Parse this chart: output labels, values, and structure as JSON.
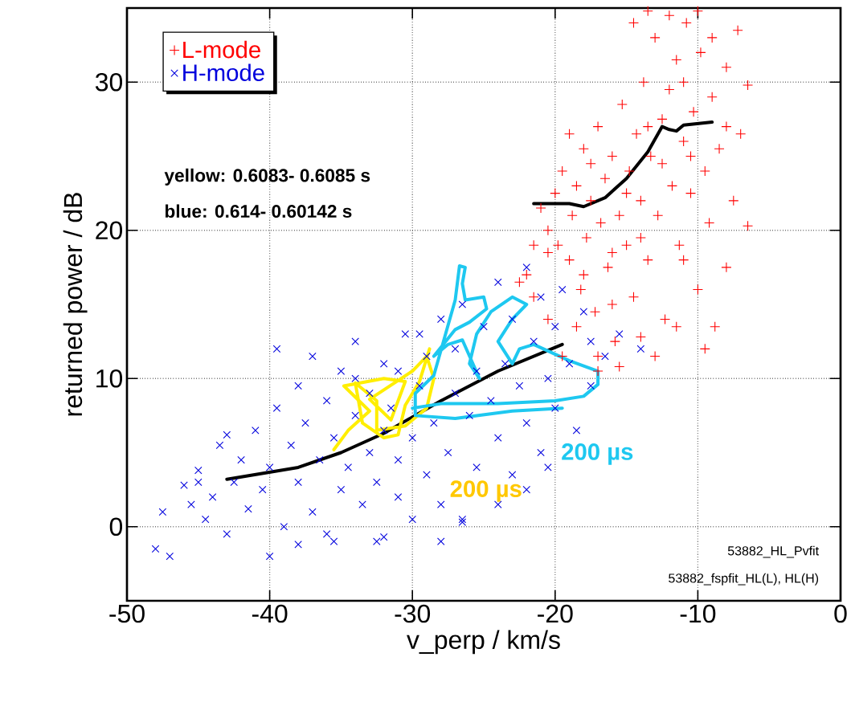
{
  "chart_data": {
    "type": "scatter",
    "xlabel": "v_perp / km/s",
    "ylabel": "returned power / dB",
    "xlim": [
      -50,
      0
    ],
    "xticks": [
      -50,
      -40,
      -30,
      -20,
      -10,
      0
    ],
    "ylim": [
      -5,
      35
    ],
    "yticks": [
      0,
      10,
      20,
      30
    ],
    "grid": true,
    "legend": "top left",
    "annotations": [
      "yellow: 0.6083- 0.6085 s",
      "blue: 0.614- 0.60142 s",
      "200 µs",
      "200 µs",
      "53882_HL_Pvfit",
      "53882_fspfit_HL(L), HL(H)"
    ],
    "series": [
      {
        "name": "L-mode",
        "marker": "plus",
        "color": "#ff0000",
        "x": [
          -21,
          -20.5,
          -20,
          -19.8,
          -19.5,
          -19,
          -18.8,
          -18.5,
          -18.2,
          -18,
          -17.8,
          -17.5,
          -17.2,
          -17,
          -16.8,
          -16.5,
          -16.3,
          -16,
          -15.8,
          -15.5,
          -15.3,
          -15,
          -14.8,
          -14.5,
          -14.3,
          -14,
          -13.8,
          -13.5,
          -13.3,
          -13,
          -12.8,
          -12.5,
          -12.3,
          -12,
          -11.8,
          -11.5,
          -11.3,
          -11,
          -10.8,
          -10.5,
          -10.3,
          -10,
          -9.8,
          -9.5,
          -9.2,
          -9,
          -8.8,
          -8.5,
          -8,
          -7.5,
          -7.2,
          -7,
          -6.5,
          -6.5,
          -8,
          -9.5,
          -11.5,
          -13,
          -14,
          -15.5,
          -17,
          -18.5,
          -19.5,
          -20.5,
          -21.5,
          -22,
          -22.5,
          -17,
          -16,
          -14.5,
          -13.5,
          -12,
          -10,
          -9,
          -11,
          -12.5,
          -13.5,
          -15,
          -17.5,
          -19,
          -11,
          -8,
          -10.5,
          -14,
          -16,
          -18,
          -20.5,
          -21.5
        ],
        "values": [
          21.5,
          20,
          22.5,
          19,
          24,
          18,
          21,
          23,
          16,
          25.5,
          19.5,
          22,
          14.5,
          27,
          20.5,
          23.5,
          17.5,
          25,
          12.5,
          21,
          28.5,
          19,
          24,
          15.5,
          26.5,
          22,
          30,
          18,
          25,
          33,
          21,
          27.5,
          14,
          29.5,
          23,
          31.5,
          19,
          26,
          34,
          22.5,
          28,
          16,
          32,
          24,
          20.5,
          29,
          13.5,
          25.5,
          31,
          22,
          33.5,
          26.5,
          29.8,
          20.3,
          17.5,
          12,
          13.5,
          11.5,
          12.8,
          10.8,
          11.5,
          13.5,
          11.5,
          14,
          15.5,
          17,
          16.5,
          10.5,
          15,
          34,
          34.8,
          34.5,
          34.8,
          33,
          30,
          24.5,
          27,
          22.5,
          24.5,
          26.5,
          18,
          27,
          25,
          19.5,
          18.5,
          17,
          18.5,
          19
        ]
      },
      {
        "name": "H-mode",
        "marker": "cross",
        "color": "#0000dd",
        "x": [
          -48,
          -47,
          -47.5,
          -46,
          -45.5,
          -45,
          -44.5,
          -44,
          -43.5,
          -43,
          -42.5,
          -42,
          -41.5,
          -41,
          -40.5,
          -40,
          -40,
          -39.5,
          -39.5,
          -39,
          -38.5,
          -38,
          -38,
          -37.5,
          -37,
          -37,
          -36.5,
          -36,
          -36,
          -35.5,
          -35,
          -35,
          -34.5,
          -34,
          -34,
          -33.5,
          -33,
          -33,
          -32.5,
          -32.5,
          -32,
          -32,
          -31.5,
          -31,
          -31,
          -30.5,
          -30,
          -30,
          -29.5,
          -29,
          -29,
          -28.5,
          -28,
          -28,
          -27.5,
          -27,
          -27,
          -26.5,
          -26.5,
          -26,
          -25.5,
          -25.5,
          -25,
          -24.5,
          -24,
          -24,
          -23.5,
          -23,
          -23,
          -22.5,
          -22,
          -22,
          -21.5,
          -21,
          -21,
          -20.5,
          -20,
          -20,
          -19.5,
          -19,
          -18.5,
          -18,
          -17.5,
          -17.5,
          -16.5,
          -15.5,
          -14,
          -43,
          -45,
          -38,
          -35.5,
          -32,
          -28,
          -26.5,
          -24,
          -22,
          -20.5,
          -34,
          -31,
          -29.5
        ],
        "values": [
          -1.5,
          -2,
          1,
          2.8,
          1.5,
          3.8,
          0.5,
          2,
          5.5,
          -0.5,
          3,
          4.5,
          1.2,
          6.5,
          2.5,
          -2,
          4,
          8,
          12,
          0,
          5.5,
          3,
          9.5,
          7,
          1,
          11.5,
          4.5,
          8.5,
          -0.5,
          6,
          2.5,
          10.5,
          4,
          7.5,
          12.5,
          1.5,
          5,
          9,
          -1,
          3,
          6.5,
          11,
          8,
          2,
          4.5,
          13,
          6,
          0.5,
          9.5,
          3.5,
          11.5,
          7,
          1.5,
          14,
          5,
          9,
          12,
          0.5,
          15,
          7.5,
          4,
          10.5,
          13.5,
          8.5,
          6,
          16.5,
          11,
          3.5,
          14,
          9.5,
          7,
          17.5,
          12.5,
          5,
          15.5,
          10,
          8,
          13.5,
          16,
          11,
          6.5,
          14.5,
          9.5,
          12.5,
          11.5,
          13,
          12,
          6.2,
          3,
          -1.2,
          -1,
          -0.7,
          -1,
          0.3,
          1.5,
          2.5,
          4,
          10,
          10.5,
          13
        ]
      },
      {
        "type": "line",
        "color": "#000000",
        "x": [
          -43,
          -38,
          -35,
          -32,
          -28,
          -24,
          -19.5
        ],
        "values": [
          3.2,
          4,
          5,
          6.3,
          8.5,
          10.5,
          12.3
        ]
      },
      {
        "type": "line",
        "color": "#000000",
        "x": [
          -21.5,
          -19,
          -18,
          -16.5,
          -15,
          -13.5,
          -12.5,
          -12,
          -11.5,
          -11,
          -9
        ],
        "values": [
          21.8,
          21.8,
          21.6,
          22.2,
          23.5,
          25.3,
          27,
          26.8,
          26.7,
          27.1,
          27.3
        ]
      },
      {
        "type": "line",
        "color": "#ffee00",
        "x": [
          -35.5,
          -34.5,
          -33,
          -34.8,
          -32,
          -30.5,
          -31.5,
          -33,
          -30,
          -29,
          -28.5,
          -29,
          -30.5,
          -32.5,
          -32.5,
          -34,
          -33.5,
          -32,
          -31,
          -30.5,
          -29.5,
          -28.8
        ],
        "values": [
          5.2,
          6.5,
          7.8,
          9.5,
          10,
          9.8,
          7.2,
          8.6,
          10.5,
          11.5,
          10,
          8,
          6.8,
          6.5,
          8.5,
          9.7,
          7,
          6,
          6.2,
          8.2,
          9.8,
          12
        ]
      },
      {
        "type": "line",
        "color": "#1ec8f0",
        "x": [
          -30,
          -28,
          -24,
          -20,
          -18,
          -17,
          -17,
          -19,
          -21.5,
          -22.5,
          -23,
          -24,
          -23,
          -22,
          -23,
          -24.5,
          -25.5,
          -26,
          -25.3,
          -26.5,
          -27.5,
          -28.5,
          -27,
          -26,
          -24.8,
          -25,
          -26.3,
          -26.5,
          -26.3,
          -26.7,
          -27,
          -28.5,
          -29.8,
          -29.8,
          -27,
          -23,
          -19.5
        ],
        "values": [
          8,
          8.3,
          8.3,
          8.5,
          8.8,
          9.6,
          10.5,
          11.2,
          12.3,
          12,
          11,
          12.5,
          14,
          15,
          15.5,
          14.5,
          13,
          11,
          10,
          12.6,
          12.3,
          11.5,
          13.3,
          13.8,
          14.7,
          15.5,
          15.3,
          16.4,
          17.5,
          17.6,
          15.3,
          10.2,
          9,
          7.5,
          7.3,
          7.8,
          8
        ]
      }
    ]
  }
}
